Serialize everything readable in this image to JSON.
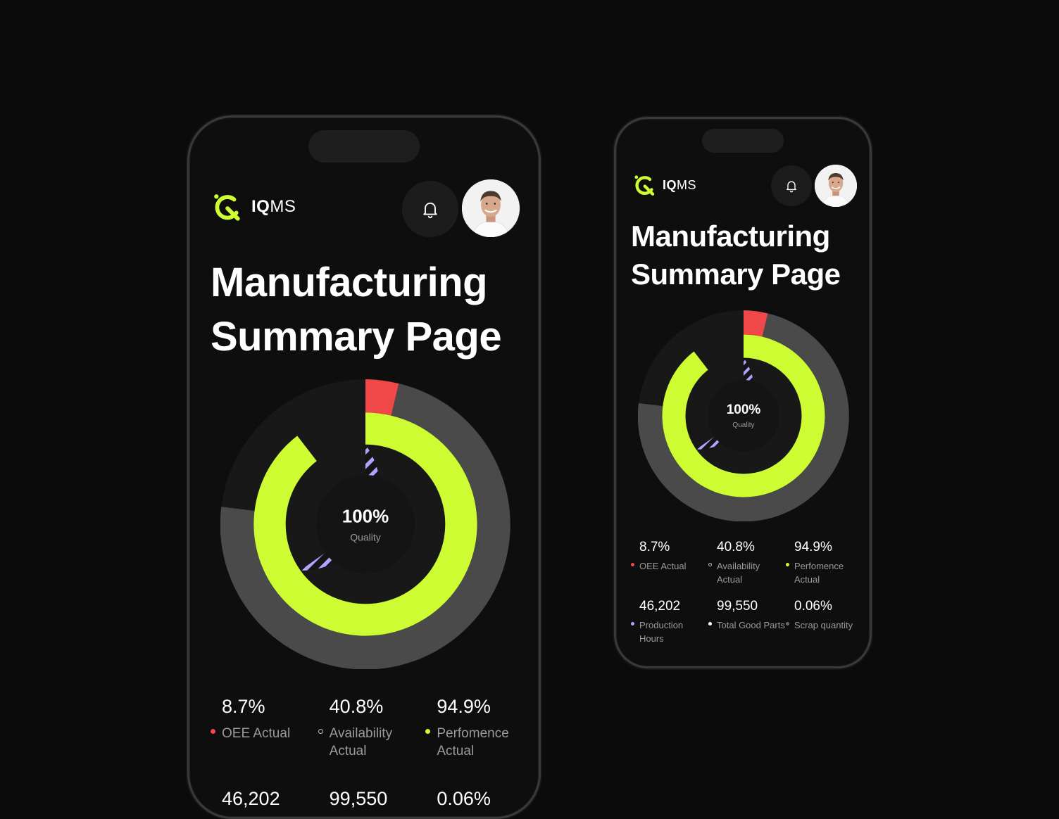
{
  "app": {
    "logo_bold": "IQ",
    "logo_light": "MS"
  },
  "header": {
    "title_line1": "Manufacturing",
    "title_line2": "Summary Page",
    "bell_icon": "bell-icon",
    "avatar": "user-avatar"
  },
  "colors": {
    "accent": "#cdfc32",
    "red": "#f04848",
    "gray": "#4a4a4a",
    "dark": "#181818",
    "purple": "#b0a4ff"
  },
  "chart_data": {
    "type": "donut",
    "center_value": "100%",
    "center_label": "Quality"
  },
  "stats": [
    {
      "value": "8.7%",
      "label": "OEE Actual",
      "dot": "#f04848"
    },
    {
      "value": "40.8%",
      "label": "Availability Actual",
      "dot": "hollow"
    },
    {
      "value": "94.9%",
      "label": "Perfomence Actual",
      "dot": "#cdfc32"
    },
    {
      "value": "46,202",
      "label": "Production Hours",
      "dot": "#b0a4ff"
    },
    {
      "value": "99,550",
      "label": "Total Good Parts",
      "dot": "#ffffff"
    },
    {
      "value": "0.06%",
      "label": "Scrap quantity",
      "dot": "#6a6a6a"
    }
  ]
}
